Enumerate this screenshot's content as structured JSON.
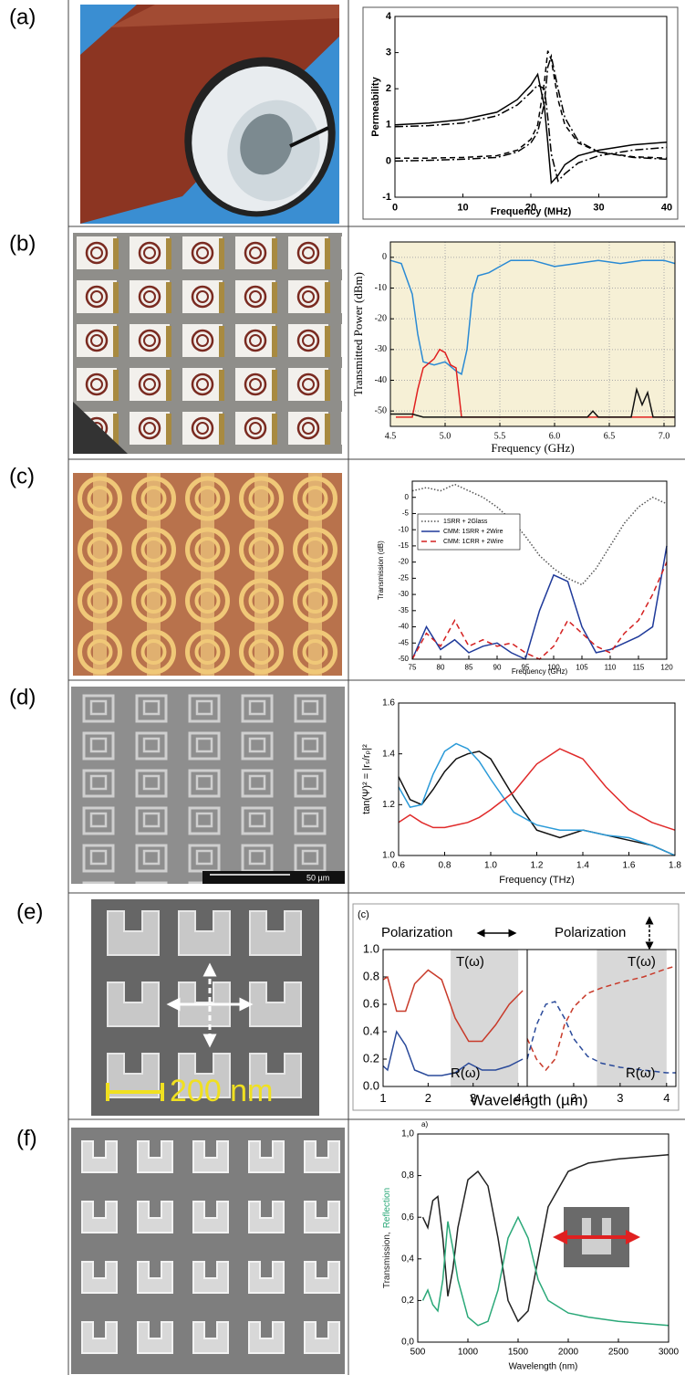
{
  "panels": [
    {
      "label": "(a)"
    },
    {
      "label": "(b)"
    },
    {
      "label": "(c)"
    },
    {
      "label": "(d)",
      "scale_bar": "50 µm"
    },
    {
      "label": "(e)",
      "scale_bar": "200 nm"
    },
    {
      "label": "(f)"
    }
  ],
  "chart_data": [
    {
      "type": "line",
      "xlabel": "Frequency (MHz)",
      "ylabel": "Permeability",
      "xlim": [
        0,
        40
      ],
      "ylim": [
        -1,
        4
      ],
      "xticks": [
        0,
        10,
        20,
        30,
        40
      ],
      "yticks": [
        -1,
        0,
        1,
        2,
        3,
        4
      ],
      "x": [
        0,
        5,
        10,
        15,
        18,
        20,
        21,
        22,
        22.5,
        23,
        24,
        25,
        27,
        30,
        35,
        40
      ],
      "series": [
        {
          "color": "#000000",
          "dash": "solid",
          "values": [
            1.0,
            1.05,
            1.15,
            1.35,
            1.7,
            2.1,
            2.4,
            1.5,
            0.5,
            -0.6,
            -0.4,
            -0.1,
            0.15,
            0.3,
            0.45,
            0.52
          ]
        },
        {
          "color": "#000000",
          "dash": "dashdot",
          "values": [
            0.95,
            0.98,
            1.05,
            1.25,
            1.55,
            1.9,
            2.1,
            2.0,
            1.2,
            0.2,
            -0.55,
            -0.35,
            -0.05,
            0.15,
            0.3,
            0.38
          ]
        },
        {
          "color": "#000000",
          "dash": "dashed",
          "values": [
            0.08,
            0.08,
            0.1,
            0.15,
            0.3,
            0.6,
            1.0,
            2.2,
            3.05,
            2.8,
            1.7,
            1.0,
            0.5,
            0.25,
            0.12,
            0.08
          ]
        },
        {
          "color": "#000000",
          "dash": "dashdot",
          "values": [
            0.0,
            0.02,
            0.05,
            0.1,
            0.25,
            0.5,
            0.8,
            1.6,
            2.6,
            2.9,
            2.0,
            1.2,
            0.55,
            0.25,
            0.1,
            0.05
          ]
        }
      ]
    },
    {
      "type": "line",
      "xlabel": "Frequency (GHz)",
      "ylabel": "Transmitted Power (dBm)",
      "xlim": [
        4.5,
        7.1
      ],
      "ylim": [
        -55,
        5
      ],
      "grid": true,
      "background": "#f6f0d6",
      "xticks": [
        4.5,
        {
          "value": 5,
          "label": "5.0"
        },
        5.5,
        {
          "value": 6,
          "label": "6.0"
        },
        6.5,
        {
          "value": 7,
          "label": "7.0"
        }
      ],
      "yticks": [
        0,
        -10,
        -20,
        -30,
        -40,
        -50
      ],
      "series": [
        {
          "color": "#2a8ad4",
          "dash": "solid",
          "x": [
            4.5,
            4.6,
            4.7,
            4.75,
            4.8,
            4.9,
            5.0,
            5.1,
            5.15,
            5.2,
            5.25,
            5.3,
            5.4,
            5.5,
            5.6,
            5.8,
            6.0,
            6.2,
            6.4,
            6.6,
            6.8,
            7.0,
            7.1
          ],
          "values": [
            -1,
            -2,
            -12,
            -25,
            -34,
            -35,
            -34,
            -37,
            -38,
            -30,
            -12,
            -6,
            -5,
            -3,
            -1,
            -1,
            -3,
            -2,
            -1,
            -2,
            -1,
            -1,
            -2
          ]
        },
        {
          "color": "#e02020",
          "dash": "solid",
          "x": [
            4.55,
            4.7,
            4.75,
            4.8,
            4.9,
            4.95,
            5.0,
            5.05,
            5.1,
            5.15,
            5.2,
            5.3,
            6.0,
            7.0,
            7.1
          ],
          "values": [
            -52,
            -52,
            -43,
            -36,
            -33,
            -30,
            -31,
            -35,
            -36,
            -52,
            -52,
            -52,
            -52,
            -52,
            -52
          ]
        },
        {
          "color": "#111111",
          "dash": "solid",
          "x": [
            4.5,
            4.7,
            4.8,
            5.0,
            5.5,
            6.0,
            6.3,
            6.35,
            6.4,
            6.5,
            6.7,
            6.75,
            6.8,
            6.85,
            6.9,
            6.95,
            7.0,
            7.1
          ],
          "values": [
            -51,
            -51,
            -52,
            -52,
            -52,
            -52,
            -52,
            -50,
            -52,
            -52,
            -52,
            -43,
            -48,
            -44,
            -52,
            -52,
            -52,
            -52
          ]
        }
      ]
    },
    {
      "type": "line",
      "xlabel": "Frequency (GHz)",
      "ylabel": "Transmission (dB)",
      "xlim": [
        75,
        120
      ],
      "ylim": [
        -50,
        5
      ],
      "legend": "upper left",
      "xticks": [
        75,
        80,
        85,
        90,
        95,
        100,
        105,
        110,
        115,
        120
      ],
      "yticks": [
        0,
        -5,
        -10,
        -15,
        -20,
        -25,
        -30,
        -35,
        -40,
        -45,
        -50
      ],
      "x": [
        75,
        77.5,
        80,
        82.5,
        85,
        87.5,
        90,
        92.5,
        95,
        97.5,
        100,
        102.5,
        105,
        107.5,
        110,
        112.5,
        115,
        117.5,
        120
      ],
      "series": [
        {
          "name": "1SRR + 2Glass",
          "color": "#555555",
          "dash": "dotted",
          "values": [
            2,
            3,
            2,
            4,
            2,
            0,
            -3,
            -7,
            -12,
            -18,
            -22,
            -25,
            -27,
            -22,
            -15,
            -8,
            -3,
            0,
            -2
          ]
        },
        {
          "name": "CMM: 1SRR + 2Wire",
          "color": "#1f3a9a",
          "dash": "solid",
          "values": [
            -50,
            -40,
            -47,
            -44,
            -48,
            -46,
            -45,
            -48,
            -50,
            -35,
            -24,
            -26,
            -40,
            -48,
            -47,
            -45,
            -43,
            -40,
            -15
          ]
        },
        {
          "name": "CMM: 1CRR + 2Wire",
          "color": "#d42020",
          "dash": "dashed",
          "values": [
            -50,
            -42,
            -46,
            -38,
            -46,
            -44,
            -46,
            -45,
            -48,
            -50,
            -46,
            -38,
            -42,
            -46,
            -48,
            -42,
            -38,
            -30,
            -20
          ]
        }
      ]
    },
    {
      "type": "line",
      "xlabel": "Frequency (THz)",
      "ylabel": "tan(Ψ)² = |rₛ/rₚ|²",
      "xlim": [
        0.6,
        1.8
      ],
      "ylim": [
        1.0,
        1.6
      ],
      "xticks": [
        0.6,
        0.8,
        {
          "value": 1,
          "label": "1.0"
        },
        1.2,
        1.4,
        1.6,
        1.8
      ],
      "yticks": [
        {
          "value": 1,
          "label": "1.0"
        },
        1.2,
        1.4,
        1.6
      ],
      "x": [
        0.6,
        0.65,
        0.7,
        0.75,
        0.8,
        0.85,
        0.9,
        0.95,
        1.0,
        1.1,
        1.2,
        1.3,
        1.4,
        1.5,
        1.6,
        1.7,
        1.8
      ],
      "series": [
        {
          "color": "#111111",
          "dash": "solid",
          "values": [
            1.31,
            1.22,
            1.2,
            1.26,
            1.33,
            1.38,
            1.4,
            1.41,
            1.38,
            1.23,
            1.1,
            1.07,
            1.1,
            1.08,
            1.06,
            1.04,
            1.0
          ]
        },
        {
          "color": "#2a9ad8",
          "dash": "solid",
          "values": [
            1.27,
            1.19,
            1.2,
            1.32,
            1.41,
            1.44,
            1.42,
            1.37,
            1.3,
            1.17,
            1.12,
            1.1,
            1.1,
            1.08,
            1.07,
            1.04,
            1.0
          ]
        },
        {
          "color": "#e02a2a",
          "dash": "solid",
          "values": [
            1.13,
            1.16,
            1.13,
            1.11,
            1.11,
            1.12,
            1.13,
            1.15,
            1.18,
            1.25,
            1.36,
            1.42,
            1.38,
            1.27,
            1.18,
            1.13,
            1.1
          ]
        }
      ]
    },
    {
      "type": "line",
      "xlabel": "Wavelength (µm)",
      "xlim": [
        1,
        4.2
      ],
      "ylim": [
        0,
        1.0
      ],
      "shade": [
        2.5,
        4.0
      ],
      "xticks": [
        1,
        2,
        3,
        4
      ],
      "yticks": [
        {
          "value": 0,
          "label": "0.0"
        },
        0.2,
        0.4,
        0.6,
        0.8,
        {
          "value": 1,
          "label": "1.0"
        }
      ],
      "annotations": [
        "(c)",
        "Polarization",
        "T(ω)",
        "R(ω)"
      ],
      "x": [
        1,
        1.1,
        1.3,
        1.5,
        1.7,
        2.0,
        2.3,
        2.6,
        2.9,
        3.2,
        3.5,
        3.8,
        4.1
      ],
      "series": [
        {
          "color": "#c83a2a",
          "dash": "solid",
          "values": [
            0.78,
            0.8,
            0.55,
            0.55,
            0.75,
            0.85,
            0.78,
            0.5,
            0.33,
            0.33,
            0.45,
            0.6,
            0.7
          ]
        },
        {
          "color": "#2a4a9a",
          "dash": "solid",
          "values": [
            0.15,
            0.12,
            0.4,
            0.3,
            0.12,
            0.08,
            0.08,
            0.1,
            0.17,
            0.12,
            0.12,
            0.15,
            0.2
          ]
        }
      ]
    },
    {
      "type": "line",
      "xlim": [
        1,
        4.2
      ],
      "ylim": [
        0,
        1.0
      ],
      "shade": [
        2.5,
        4.0
      ],
      "xticks": [
        1,
        2,
        3,
        4
      ],
      "annotations": [
        "Polarization",
        "T(ω)",
        "R(ω)"
      ],
      "x": [
        1,
        1.2,
        1.4,
        1.6,
        1.8,
        2.0,
        2.3,
        2.6,
        3.0,
        3.5,
        4.0,
        4.2
      ],
      "series": [
        {
          "color": "#c83a2a",
          "dash": "dashed",
          "values": [
            0.35,
            0.2,
            0.12,
            0.2,
            0.45,
            0.58,
            0.68,
            0.72,
            0.76,
            0.8,
            0.86,
            0.88
          ]
        },
        {
          "color": "#2a4a9a",
          "dash": "dashed",
          "values": [
            0.2,
            0.45,
            0.6,
            0.62,
            0.5,
            0.35,
            0.22,
            0.17,
            0.14,
            0.12,
            0.1,
            0.1
          ]
        }
      ]
    },
    {
      "type": "line",
      "xlabel": "Wavelength (nm)",
      "ylabel": [
        "Transmission,",
        "Reflection"
      ],
      "xlim": [
        500,
        3000
      ],
      "ylim": [
        0,
        1.0
      ],
      "xticks": [
        500,
        1000,
        1500,
        2000,
        2500,
        3000
      ],
      "yticks": [
        {
          "value": 0,
          "label": "0,0"
        },
        {
          "value": 0.2,
          "label": "0,2"
        },
        {
          "value": 0.4,
          "label": "0,4"
        },
        {
          "value": 0.6,
          "label": "0,6"
        },
        {
          "value": 0.8,
          "label": "0,8"
        },
        {
          "value": 1,
          "label": "1,0"
        }
      ],
      "annotations": [
        "a)"
      ],
      "x": [
        550,
        600,
        650,
        700,
        750,
        800,
        850,
        900,
        1000,
        1100,
        1200,
        1300,
        1400,
        1500,
        1600,
        1700,
        1800,
        2000,
        2200,
        2500,
        3000
      ],
      "series": [
        {
          "color": "#222222",
          "dash": "solid",
          "values": [
            0.6,
            0.55,
            0.68,
            0.7,
            0.5,
            0.22,
            0.35,
            0.55,
            0.78,
            0.82,
            0.75,
            0.5,
            0.2,
            0.1,
            0.15,
            0.4,
            0.65,
            0.82,
            0.86,
            0.88,
            0.9
          ]
        },
        {
          "color": "#2aa878",
          "dash": "solid",
          "values": [
            0.2,
            0.25,
            0.18,
            0.15,
            0.3,
            0.58,
            0.45,
            0.3,
            0.12,
            0.08,
            0.1,
            0.25,
            0.5,
            0.6,
            0.5,
            0.3,
            0.2,
            0.14,
            0.12,
            0.1,
            0.08
          ]
        }
      ]
    }
  ]
}
